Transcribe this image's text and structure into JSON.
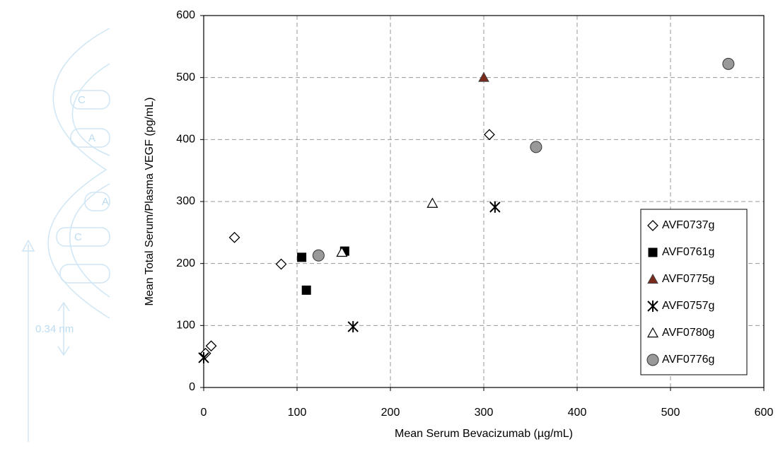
{
  "chart_data": {
    "type": "scatter",
    "x_label": "Mean Serum Bevacizumab (µg/mL)",
    "y_label": "Mean Total Serum/Plasma VEGF (pg/mL)",
    "xlim": [
      0,
      600
    ],
    "xticks": [
      0,
      100,
      200,
      300,
      400,
      500,
      600
    ],
    "ylim": [
      0,
      600
    ],
    "yticks": [
      0,
      100,
      200,
      300,
      400,
      500,
      600
    ],
    "grid": true,
    "legend": "lower right",
    "series": [
      {
        "name": "AVF0737g",
        "marker": "open-diamond",
        "color": "#000000",
        "x": [
          2,
          8,
          33,
          83,
          306
        ],
        "values": [
          55,
          67,
          242,
          199,
          408
        ]
      },
      {
        "name": "AVF0761g",
        "marker": "square",
        "color": "#000000",
        "x": [
          105,
          110,
          151
        ],
        "values": [
          210,
          157,
          220
        ]
      },
      {
        "name": "AVF0775g",
        "marker": "triangle",
        "color": "#7a2a1a",
        "x": [
          300
        ],
        "values": [
          500
        ]
      },
      {
        "name": "AVF0757g",
        "marker": "star",
        "color": "#000000",
        "x": [
          0,
          160,
          312
        ],
        "values": [
          48,
          98,
          291
        ]
      },
      {
        "name": "AVF0780g",
        "marker": "open-triangle",
        "color": "#000000",
        "x": [
          148,
          245
        ],
        "values": [
          218,
          297
        ]
      },
      {
        "name": "AVF0776g",
        "marker": "circle",
        "color": "#999999",
        "x": [
          123,
          356,
          562
        ],
        "values": [
          213,
          388,
          522
        ]
      }
    ]
  },
  "background_labels": [
    "C",
    "A",
    "A",
    "C",
    "0.34 nm"
  ]
}
